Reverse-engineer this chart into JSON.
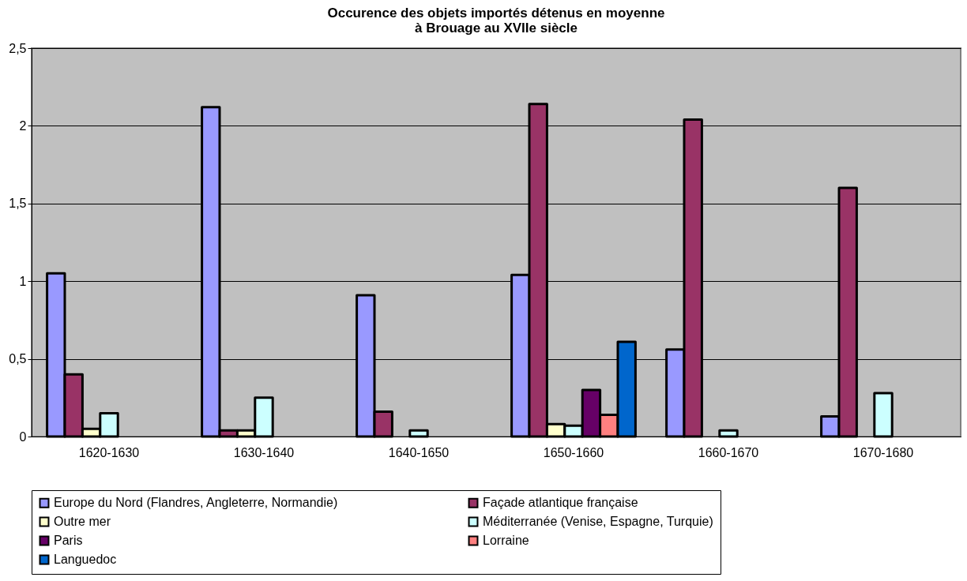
{
  "chart_data": {
    "type": "bar",
    "title": "Occurence des objets importés détenus en moyenne\nà Brouage au XVIIe siècle",
    "categories": [
      "1620-1630",
      "1630-1640",
      "1640-1650",
      "1650-1660",
      "1660-1670",
      "1670-1680"
    ],
    "series": [
      {
        "name": "Europe du Nord (Flandres, Angleterre, Normandie)",
        "color": "#9999ff",
        "values": [
          1.05,
          2.12,
          0.91,
          1.04,
          0.56,
          0.13
        ]
      },
      {
        "name": "Façade atlantique française",
        "color": "#993366",
        "values": [
          0.4,
          0.04,
          0.16,
          2.14,
          2.04,
          1.6
        ]
      },
      {
        "name": "Outre mer",
        "color": "#ffffcc",
        "values": [
          0.05,
          0.04,
          null,
          0.08,
          null,
          null
        ]
      },
      {
        "name": "Méditerranée (Venise, Espagne, Turquie)",
        "color": "#ccffff",
        "values": [
          0.15,
          0.25,
          0.04,
          0.07,
          0.04,
          0.28
        ]
      },
      {
        "name": "Paris",
        "color": "#660066",
        "values": [
          null,
          null,
          null,
          0.3,
          null,
          null
        ]
      },
      {
        "name": "Lorraine",
        "color": "#ff8080",
        "values": [
          null,
          null,
          null,
          0.14,
          null,
          null
        ]
      },
      {
        "name": "Languedoc",
        "color": "#0066cc",
        "values": [
          null,
          null,
          null,
          0.61,
          null,
          null
        ]
      }
    ],
    "ylim": [
      0,
      2.5
    ],
    "yticks": [
      0,
      {
        "value": 0.5,
        "label": "0,5"
      },
      1,
      {
        "value": 1.5,
        "label": "1,5"
      },
      2,
      {
        "value": 2.5,
        "label": "2,5"
      }
    ],
    "grid": "y",
    "legend": "bottom"
  }
}
